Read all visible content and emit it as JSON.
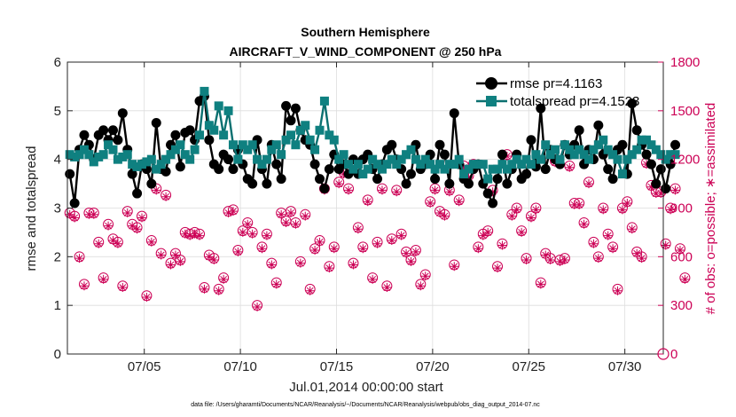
{
  "chart_data": {
    "type": "line",
    "title": "Southern Hemisphere",
    "subtitle": "AIRCRAFT_V_WIND_COMPONENT @ 250 hPa",
    "xlabel": "Jul.01,2014 00:00:00 start",
    "ylabel": "rmse and totalspread",
    "y2label": "# of obs: o=possible; ∗=assimilated",
    "footnote": "data file: /Users/gharamti/Documents/NCAR/Reanalysis/~/Documents/NCAR/Reanalysis/webpub/obs_diag_output_2014-07.nc",
    "legend": [
      "rmse pr=4.1163",
      "totalspread pr=4.1523"
    ],
    "xlim": [
      1,
      32
    ],
    "ylim": [
      0,
      6
    ],
    "y2lim": [
      0,
      1800
    ],
    "x_ticks": [
      5,
      10,
      15,
      20,
      25,
      30
    ],
    "x_tick_labels": [
      "07/05",
      "07/10",
      "07/15",
      "07/20",
      "07/25",
      "07/30"
    ],
    "y_ticks": [
      0,
      1,
      2,
      3,
      4,
      5,
      6
    ],
    "y_tick_labels": [
      "0",
      "1",
      "2",
      "3",
      "4",
      "5",
      "6"
    ],
    "y2_ticks": [
      0,
      300,
      600,
      900,
      1200,
      1500,
      1800
    ],
    "y2_tick_labels": [
      "0",
      "300",
      "600",
      "900",
      "1200",
      "1500",
      "1800"
    ],
    "grid": true,
    "x_step_hours": 6,
    "x_start": 1.125,
    "series": [
      {
        "name": "rmse",
        "color": "#000000",
        "marker": "circle",
        "values": [
          3.7,
          3.1,
          4.2,
          4.5,
          4.3,
          4.0,
          4.5,
          4.6,
          4.4,
          4.6,
          4.4,
          4.95,
          4.2,
          3.7,
          3.3,
          3.9,
          3.8,
          3.5,
          4.75,
          3.8,
          3.75,
          4.3,
          4.5,
          3.85,
          4.55,
          4.6,
          4.4,
          5.2,
          5.3,
          4.4,
          3.9,
          3.8,
          4.1,
          4.0,
          3.8,
          4.2,
          3.9,
          3.6,
          3.5,
          4.4,
          3.8,
          3.5,
          4.3,
          3.9,
          3.6,
          5.1,
          4.8,
          5.05,
          4.6,
          4.4,
          4.3,
          3.9,
          3.6,
          3.4,
          3.8,
          4.1,
          3.8,
          3.9,
          3.7,
          4.0,
          3.7,
          4.0,
          4.1,
          3.8,
          3.6,
          3.9,
          4.2,
          4.3,
          4.0,
          3.8,
          3.5,
          3.7,
          4.3,
          3.8,
          3.9,
          4.1,
          3.6,
          4.3,
          4.1,
          3.5,
          4.95,
          3.9,
          3.6,
          3.5,
          3.8,
          3.9,
          3.5,
          3.3,
          3.1,
          3.6,
          4.1,
          3.5,
          3.8,
          4.1,
          3.6,
          3.7,
          4.4,
          3.85,
          5.05,
          3.8,
          4.2,
          4.0,
          3.9,
          4.3,
          4.1,
          4.3,
          4.6,
          3.9,
          4.2,
          4.0,
          4.7,
          4.1,
          3.8,
          3.6,
          4.2,
          4.3,
          3.7,
          5.15,
          4.6,
          4.3,
          4.1,
          3.9,
          3.5,
          3.8,
          3.4,
          3.9,
          4.3
        ]
      },
      {
        "name": "totalspread",
        "color": "#0f8080",
        "marker": "square",
        "values": [
          4.1,
          4.05,
          4.1,
          4.2,
          4.1,
          3.95,
          4.05,
          4.1,
          4.3,
          4.2,
          4.0,
          4.05,
          4.1,
          3.9,
          3.85,
          3.9,
          3.95,
          4.0,
          3.8,
          3.9,
          4.0,
          4.1,
          4.2,
          4.3,
          4.1,
          4.0,
          4.2,
          4.5,
          5.4,
          4.7,
          4.6,
          5.1,
          4.5,
          5.0,
          4.3,
          4.0,
          4.3,
          4.2,
          4.3,
          4.0,
          3.9,
          4.0,
          4.2,
          4.3,
          4.1,
          4.4,
          4.5,
          4.3,
          4.6,
          4.7,
          4.4,
          4.2,
          4.6,
          5.2,
          4.5,
          4.4,
          4.0,
          4.1,
          3.9,
          3.8,
          3.9,
          3.7,
          3.8,
          4.0,
          3.9,
          3.8,
          3.9,
          4.0,
          3.9,
          4.0,
          4.1,
          4.2,
          4.0,
          3.9,
          4.0,
          3.9,
          3.8,
          3.9,
          3.8,
          3.9,
          3.9,
          4.0,
          3.7,
          3.8,
          3.9,
          3.9,
          3.9,
          3.6,
          3.8,
          3.8,
          3.9,
          3.8,
          3.9,
          4.0,
          3.9,
          4.0,
          3.9,
          4.1,
          4.0,
          4.3,
          4.1,
          4.2,
          4.0,
          4.3,
          4.2,
          4.1,
          4.2,
          4.1,
          4.0,
          4.2,
          4.3,
          4.4,
          4.2,
          4.1,
          4.0,
          3.7,
          4.0,
          4.1,
          4.2,
          4.4,
          4.4,
          4.3,
          4.2,
          4.1,
          4.0,
          4.1,
          4.1
        ]
      },
      {
        "name": "obs possible",
        "color": "#cc0055",
        "marker": "open-circle",
        "values": [
          870,
          850,
          600,
          430,
          870,
          870,
          690,
          470,
          800,
          710,
          690,
          420,
          880,
          800,
          780,
          850,
          360,
          700,
          1020,
          620,
          980,
          560,
          620,
          580,
          750,
          740,
          750,
          740,
          410,
          610,
          590,
          400,
          470,
          880,
          890,
          640,
          760,
          810,
          750,
          300,
          660,
          740,
          560,
          440,
          870,
          820,
          880,
          810,
          570,
          860,
          400,
          650,
          700,
          1020,
          540,
          660,
          1060,
          1120,
          1020,
          560,
          780,
          660,
          950,
          470,
          690,
          1020,
          420,
          710,
          1010,
          740,
          630,
          580,
          640,
          430,
          490,
          940,
          1020,
          880,
          860,
          1010,
          550,
          950,
          1160,
          1100,
          1170,
          660,
          740,
          760,
          1010,
          540,
          680,
          1230,
          860,
          900,
          760,
          590,
          850,
          900,
          440,
          620,
          590,
          1190,
          580,
          590,
          1160,
          930,
          930,
          810,
          1060,
          690,
          600,
          900,
          740,
          660,
          400,
          900,
          940,
          780,
          630,
          600,
          1180,
          1040,
          1000,
          1000,
          680,
          900,
          1020,
          650,
          470
        ]
      },
      {
        "name": "obs assimilated",
        "color": "#cc0055",
        "marker": "star",
        "values": [
          860,
          840,
          590,
          420,
          860,
          860,
          680,
          460,
          790,
          700,
          680,
          410,
          870,
          790,
          770,
          840,
          350,
          690,
          1010,
          610,
          970,
          550,
          610,
          570,
          740,
          730,
          740,
          730,
          400,
          600,
          580,
          390,
          460,
          870,
          880,
          630,
          750,
          800,
          740,
          290,
          650,
          730,
          550,
          430,
          860,
          810,
          870,
          800,
          560,
          850,
          390,
          640,
          690,
          1010,
          530,
          650,
          1050,
          1110,
          1010,
          550,
          770,
          650,
          940,
          460,
          680,
          1010,
          410,
          700,
          1000,
          730,
          620,
          570,
          630,
          420,
          480,
          930,
          1010,
          870,
          850,
          1000,
          540,
          940,
          1150,
          1090,
          1160,
          650,
          730,
          750,
          1000,
          530,
          670,
          1220,
          850,
          890,
          750,
          580,
          840,
          890,
          430,
          610,
          580,
          1180,
          570,
          580,
          1150,
          920,
          920,
          800,
          1050,
          680,
          590,
          890,
          730,
          650,
          390,
          890,
          930,
          770,
          620,
          590,
          1170,
          1030,
          990,
          990,
          670,
          890,
          1010,
          640,
          460
        ]
      }
    ]
  }
}
